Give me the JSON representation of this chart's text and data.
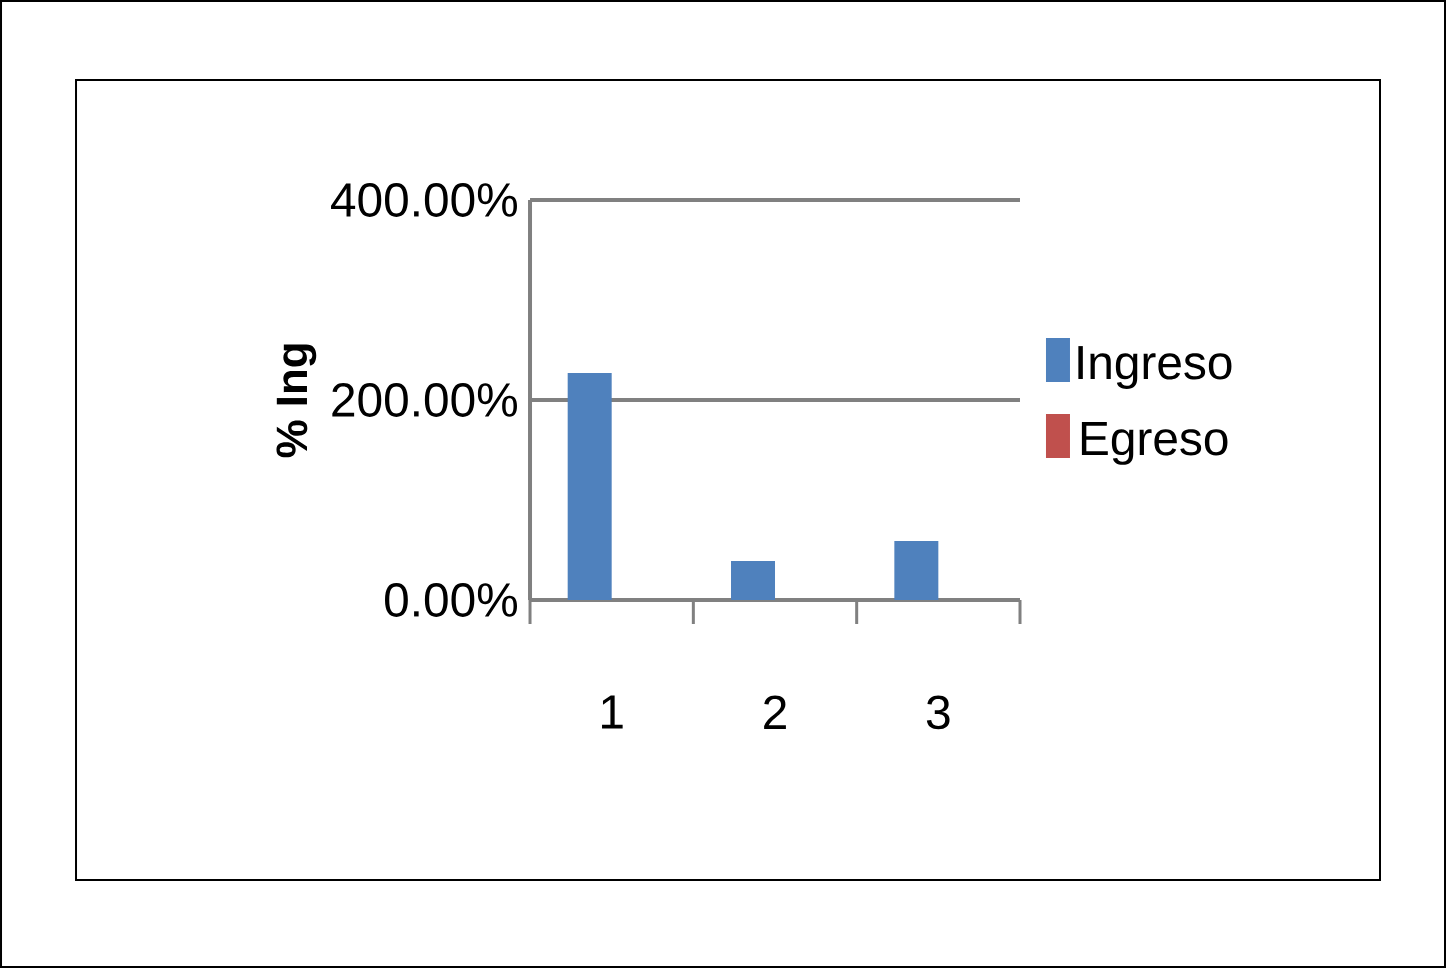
{
  "chart_data": {
    "type": "bar",
    "ylabel": "% Ing",
    "categories": [
      "1",
      "2",
      "3"
    ],
    "series": [
      {
        "name": "Ingreso",
        "color": "#4f81bd",
        "values": [
          227,
          39,
          59
        ]
      },
      {
        "name": "Egreso",
        "color": "#c0504d",
        "values": [
          0,
          0,
          0
        ]
      }
    ],
    "ylim": [
      0,
      400
    ],
    "yticks": [
      {
        "value": 0,
        "label": "0.00%"
      },
      {
        "value": 200,
        "label": "200.00%"
      },
      {
        "value": 400,
        "label": "400.00%"
      }
    ],
    "grid": "y",
    "legend": "right"
  }
}
